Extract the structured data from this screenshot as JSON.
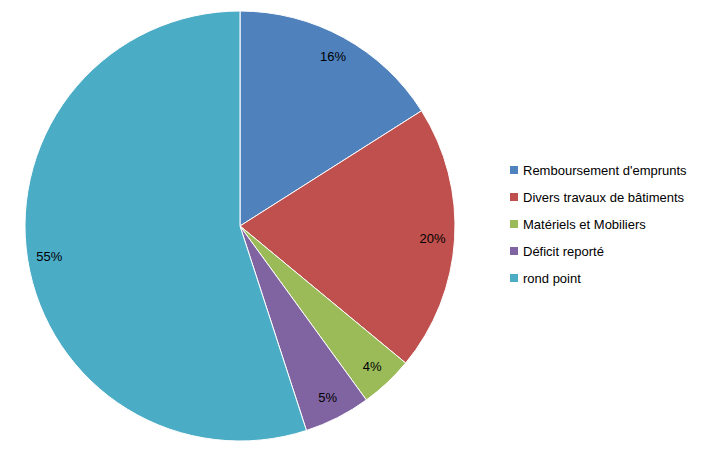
{
  "chart_data": {
    "type": "pie",
    "categories": [
      "Remboursement d'emprunts",
      "Divers travaux de bâtiments",
      "Matériels et Mobiliers",
      "Déficit reporté",
      "rond point"
    ],
    "values": [
      16,
      20,
      4,
      5,
      55
    ],
    "value_labels": [
      "16%",
      "20%",
      "4%",
      "5%",
      "55%"
    ],
    "colors": [
      "#4f81bd",
      "#c0504d",
      "#9bbb59",
      "#8064a2",
      "#4bacc6"
    ],
    "data_labels": true,
    "legend": "right"
  }
}
